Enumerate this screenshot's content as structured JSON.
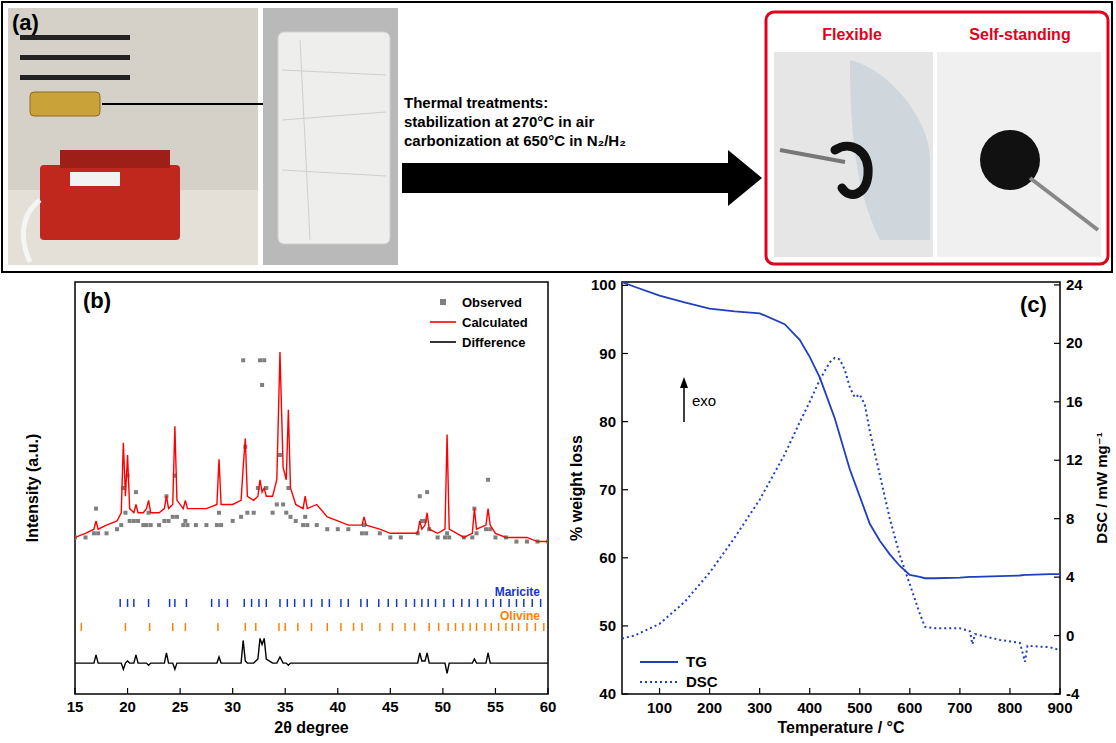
{
  "panel_a": {
    "label": "(a)",
    "process": {
      "title": "Thermal treatments:",
      "steps": [
        "stabilization at 270°C in air",
        "carbonization at 650°C in N₂/H₂"
      ]
    },
    "result_labels": [
      "Flexible",
      "Self-standing"
    ]
  },
  "chart_data": [
    {
      "label": "(b)",
      "type": "line",
      "x_label": "2θ degree",
      "y_label": "Intensity (a.u.)",
      "xlim": [
        15,
        60
      ],
      "xticks": [
        15,
        20,
        25,
        30,
        35,
        40,
        45,
        50,
        55,
        60
      ],
      "ylim": [
        0,
        100
      ],
      "tick_labels": "x",
      "legend": "upper right",
      "x": [
        15,
        16,
        16.8,
        17.0,
        17.2,
        18,
        19,
        19.4,
        19.6,
        19.8,
        20.0,
        20.2,
        20.6,
        20.8,
        21.0,
        21.5,
        21.8,
        22.0,
        22.2,
        23.0,
        23.5,
        23.7,
        23.9,
        24.3,
        24.5,
        24.7,
        25.3,
        25.5,
        25.7,
        26.5,
        27.5,
        28.5,
        28.7,
        28.9,
        30.0,
        30.8,
        31.0,
        31.2,
        31.4,
        32.0,
        32.4,
        32.6,
        32.8,
        33.0,
        33.2,
        33.8,
        34.2,
        34.5,
        34.8,
        35.1,
        35.3,
        35.5,
        36.0,
        36.7,
        36.9,
        37.1,
        38.0,
        39.0,
        40.0,
        41.0,
        42.3,
        42.5,
        42.7,
        44.0,
        45.0,
        46.0,
        47.6,
        47.8,
        48.0,
        48.3,
        48.5,
        48.7,
        49.5,
        50.2,
        50.4,
        50.6,
        52.0,
        52.8,
        53.0,
        53.2,
        54.1,
        54.3,
        54.5,
        55.0,
        56.0,
        57.0,
        58.0,
        59.0,
        60.0
      ],
      "series": [
        {
          "name": "Observed",
          "type": "scatter",
          "marker": "square",
          "color": "#7f7f7f",
          "values": [
            38,
            38,
            39,
            45,
            39,
            39,
            40,
            41,
            50,
            44,
            53,
            42,
            42,
            49,
            42,
            41,
            41,
            44,
            41,
            41,
            42,
            48,
            42,
            43,
            53,
            43,
            41,
            42,
            41,
            41,
            41,
            41,
            44,
            41,
            42,
            43,
            81,
            60,
            44,
            44,
            50,
            81,
            75,
            81,
            50,
            44,
            46,
            58,
            46,
            44,
            50,
            43,
            42,
            41,
            43,
            41,
            41,
            40,
            40,
            40,
            39,
            41,
            39,
            39,
            38,
            38,
            39,
            48,
            42,
            42,
            49,
            40,
            38,
            38,
            39,
            38,
            38,
            38,
            45,
            39,
            40,
            52,
            40,
            38,
            38,
            37,
            37,
            37,
            37
          ]
        },
        {
          "name": "Calculated",
          "type": "line",
          "line_style": "solid",
          "color": "#ff0000",
          "values": [
            38,
            39,
            40,
            42,
            40,
            41,
            42,
            44,
            61,
            48,
            58,
            45,
            44,
            46,
            44,
            44,
            45,
            47,
            44,
            44,
            45,
            48,
            45,
            46,
            65,
            47,
            45,
            47,
            45,
            45,
            45,
            46,
            57,
            46,
            46,
            47,
            55,
            62,
            48,
            47,
            48,
            52,
            49,
            50,
            48,
            48,
            52,
            83,
            55,
            52,
            69,
            50,
            46,
            45,
            48,
            45,
            46,
            43,
            42,
            41,
            41,
            43,
            41,
            40,
            39,
            39,
            39,
            42,
            40,
            41,
            44,
            40,
            39,
            40,
            63,
            40,
            38,
            39,
            45,
            40,
            41,
            45,
            41,
            39,
            38,
            38,
            38,
            37,
            37
          ]
        },
        {
          "name": "Difference",
          "type": "line",
          "line_style": "solid",
          "color": "#000000",
          "values": [
            7.5,
            7.5,
            7.5,
            9.5,
            7.5,
            7.5,
            7.5,
            7.5,
            6,
            7.5,
            8,
            7.5,
            7.5,
            9.5,
            7.5,
            7.5,
            7.5,
            7,
            7.5,
            7.5,
            7.5,
            10,
            7.5,
            7.5,
            6,
            7.5,
            7.5,
            7.5,
            7.5,
            7.5,
            7.5,
            7.5,
            9,
            7.5,
            7.5,
            7.5,
            13,
            8,
            7.5,
            7.5,
            8.5,
            13.5,
            12,
            13.5,
            8.5,
            7.5,
            7.5,
            9,
            7.5,
            7.5,
            7,
            7.5,
            7.5,
            7.5,
            7.5,
            7.5,
            7.5,
            7.5,
            7.5,
            7.5,
            7.5,
            7.5,
            7.5,
            7.5,
            7.5,
            7.5,
            7.5,
            10,
            8,
            8,
            10,
            7.5,
            7.5,
            7.5,
            5,
            7.5,
            7.5,
            7.5,
            8.5,
            7.5,
            7.5,
            10,
            7.5,
            7.5,
            7.5,
            7.5,
            7.5,
            7.5,
            7.5
          ]
        }
      ],
      "reflections": [
        {
          "name": "Maricite",
          "color": "#1a35c8",
          "positions": [
            19.3,
            20.0,
            20.6,
            22.0,
            24.0,
            24.5,
            25.6,
            28.0,
            28.7,
            29.5,
            31.1,
            31.8,
            32.5,
            33.2,
            34.5,
            35.2,
            35.9,
            36.8,
            37.5,
            38.5,
            39.2,
            40.3,
            41.0,
            42.2,
            42.8,
            43.9,
            44.8,
            45.6,
            46.5,
            47.3,
            48.0,
            48.6,
            49.3,
            50.1,
            51.0,
            51.8,
            52.5,
            53.3,
            54.1,
            54.8,
            55.5,
            56.3,
            57.0,
            57.7,
            58.5,
            59.3
          ]
        },
        {
          "name": "Olivine",
          "color": "#ff8000",
          "positions": [
            15.6,
            19.8,
            22.1,
            24.3,
            25.5,
            28.6,
            31.2,
            32.2,
            34.4,
            35.0,
            36.2,
            37.5,
            39.0,
            40.3,
            41.5,
            42.3,
            44.0,
            45.2,
            46.4,
            47.3,
            48.7,
            49.6,
            50.5,
            51.2,
            51.9,
            52.6,
            53.2,
            54.0,
            54.6,
            55.3,
            56.0,
            56.6,
            57.2,
            58.0,
            58.8,
            59.6
          ]
        }
      ]
    },
    {
      "label": "(c)",
      "type": "line",
      "x_label": "Temperature / °C",
      "y_label": "% weight loss",
      "y2_label": "DSC / mW mg⁻¹",
      "annotation": "exo",
      "xlim": [
        25,
        900
      ],
      "xticks": [
        100,
        200,
        300,
        400,
        500,
        600,
        700,
        800,
        900
      ],
      "ylim": [
        40,
        100.5
      ],
      "yticks": [
        40,
        50,
        60,
        70,
        80,
        90,
        100
      ],
      "y2lim": [
        -4,
        24.2
      ],
      "y2ticks": [
        -4,
        0,
        4,
        8,
        12,
        16,
        20,
        24
      ],
      "legend": "lower left",
      "x": [
        25,
        50,
        100,
        150,
        200,
        250,
        300,
        350,
        380,
        400,
        420,
        440,
        450,
        460,
        470,
        480,
        490,
        500,
        510,
        520,
        540,
        560,
        580,
        600,
        620,
        630,
        650,
        700,
        720,
        725,
        730,
        780,
        820,
        830,
        835,
        880,
        900
      ],
      "series": [
        {
          "name": "TG",
          "color": "#1f3fbf",
          "line_style": "solid",
          "values": [
            100.5,
            99.8,
            98.5,
            97.5,
            96.6,
            96.2,
            95.9,
            94.3,
            92.0,
            89.5,
            86.5,
            82.5,
            80.5,
            78.0,
            75.5,
            73.0,
            71.0,
            69.0,
            67.0,
            65.0,
            62.5,
            60.5,
            58.8,
            57.5,
            57.2,
            57.0,
            57.0,
            57.1,
            57.2,
            57.2,
            57.2,
            57.3,
            57.4,
            57.5,
            57.5,
            57.6,
            57.6
          ]
        },
        {
          "name": "DSC",
          "color": "#1f3fbf",
          "line_style": "dotted",
          "axis": "y2",
          "values": [
            -0.2,
            0.0,
            0.8,
            2.3,
            4.3,
            6.7,
            9.3,
            12.4,
            14.6,
            16.0,
            17.5,
            18.7,
            19.0,
            18.9,
            18.2,
            17.0,
            16.3,
            16.5,
            15.8,
            14.0,
            11.0,
            8.0,
            5.5,
            3.5,
            1.5,
            0.6,
            0.5,
            0.5,
            0.3,
            -0.6,
            0.1,
            -0.3,
            -0.5,
            -1.8,
            -0.7,
            -0.8,
            -1.0
          ]
        }
      ]
    }
  ]
}
